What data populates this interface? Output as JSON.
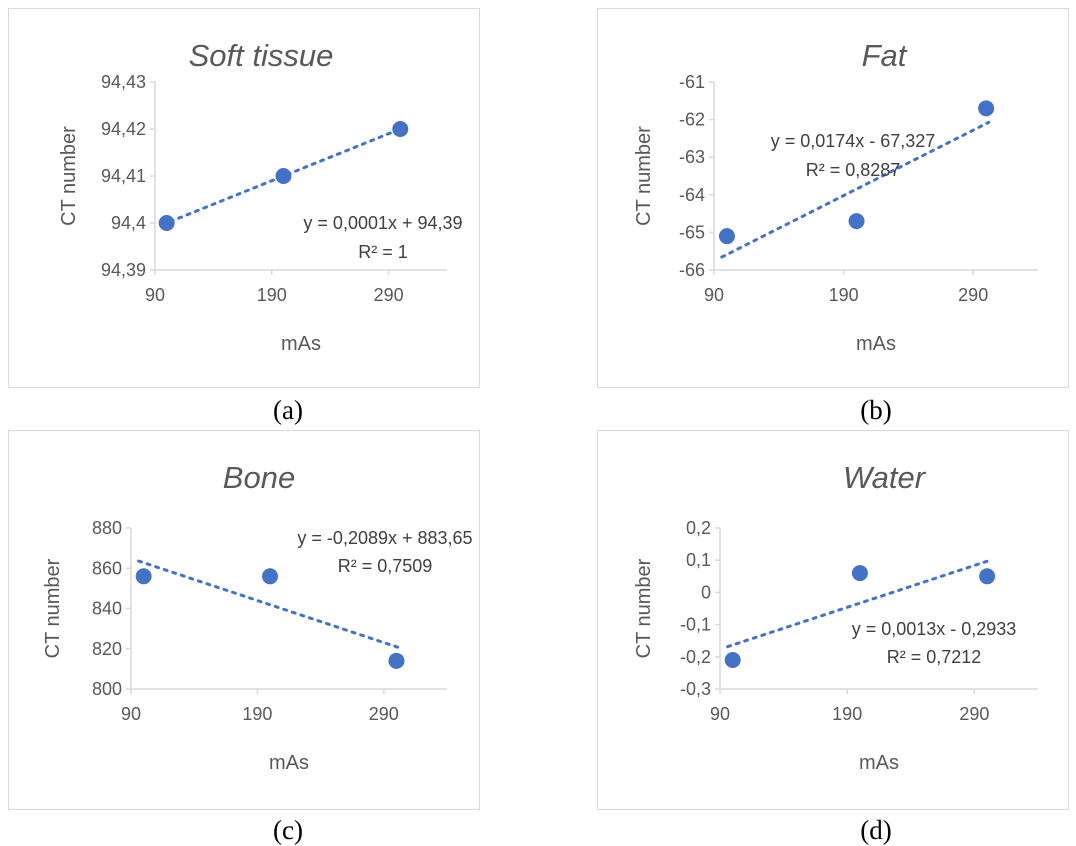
{
  "chart_data": [
    {
      "type": "scatter",
      "title": "Soft tissue",
      "xlabel": "mAs",
      "ylabel": "CT number",
      "xlim": [
        90,
        340
      ],
      "ylim": [
        94.39,
        94.43
      ],
      "x_ticks": [
        "90",
        "190",
        "290"
      ],
      "y_ticks": [
        "94,43",
        "94,42",
        "94,41",
        "94,4",
        "94,39"
      ],
      "x": [
        100,
        200,
        300
      ],
      "y": [
        94.4,
        94.41,
        94.42
      ],
      "trendline": {
        "type": "linear",
        "slope": 0.0001,
        "intercept": 94.39
      },
      "equation": "y = 0,0001x + 94,39",
      "r2": "R² = 1",
      "caption": "(a)",
      "grid": false,
      "color": "#4472c4"
    },
    {
      "type": "scatter",
      "title": "Fat",
      "xlabel": "mAs",
      "ylabel": "CT number",
      "xlim": [
        90,
        340
      ],
      "ylim": [
        -66,
        -61
      ],
      "x_ticks": [
        "90",
        "190",
        "290"
      ],
      "y_ticks": [
        "-61",
        "-62",
        "-63",
        "-64",
        "-65",
        "-66"
      ],
      "x": [
        100,
        200,
        300
      ],
      "y": [
        -65.1,
        -64.7,
        -61.7
      ],
      "trendline": {
        "type": "linear",
        "slope": 0.0174,
        "intercept": -67.327
      },
      "equation": "y = 0,0174x - 67,327",
      "r2": "R² = 0,8287",
      "caption": "(b)",
      "grid": false,
      "color": "#4472c4"
    },
    {
      "type": "scatter",
      "title": "Bone",
      "xlabel": "mAs",
      "ylabel": "CT number",
      "xlim": [
        90,
        340
      ],
      "ylim": [
        800,
        880
      ],
      "x_ticks": [
        "90",
        "190",
        "290"
      ],
      "y_ticks": [
        "880",
        "860",
        "840",
        "820",
        "800"
      ],
      "x": [
        100,
        200,
        300
      ],
      "y": [
        856,
        856,
        814
      ],
      "trendline": {
        "type": "linear",
        "slope": -0.2089,
        "intercept": 883.65
      },
      "equation": "y = -0,2089x + 883,65",
      "r2": "R² = 0,7509",
      "caption": "(c)",
      "grid": false,
      "color": "#4472c4"
    },
    {
      "type": "scatter",
      "title": "Water",
      "xlabel": "mAs",
      "ylabel": "CT number",
      "xlim": [
        90,
        340
      ],
      "ylim": [
        -0.3,
        0.2
      ],
      "x_ticks": [
        "90",
        "190",
        "290"
      ],
      "y_ticks": [
        "0,2",
        "0,1",
        "0",
        "-0,1",
        "-0,2",
        "-0,3"
      ],
      "x": [
        100,
        200,
        300
      ],
      "y": [
        -0.21,
        0.06,
        0.05
      ],
      "trendline": {
        "type": "linear",
        "slope": 0.0013,
        "intercept": -0.2933
      },
      "equation": "y = 0,0013x - 0,2933",
      "r2": "R² = 0,7212",
      "caption": "(d)",
      "grid": false,
      "color": "#4472c4"
    }
  ]
}
